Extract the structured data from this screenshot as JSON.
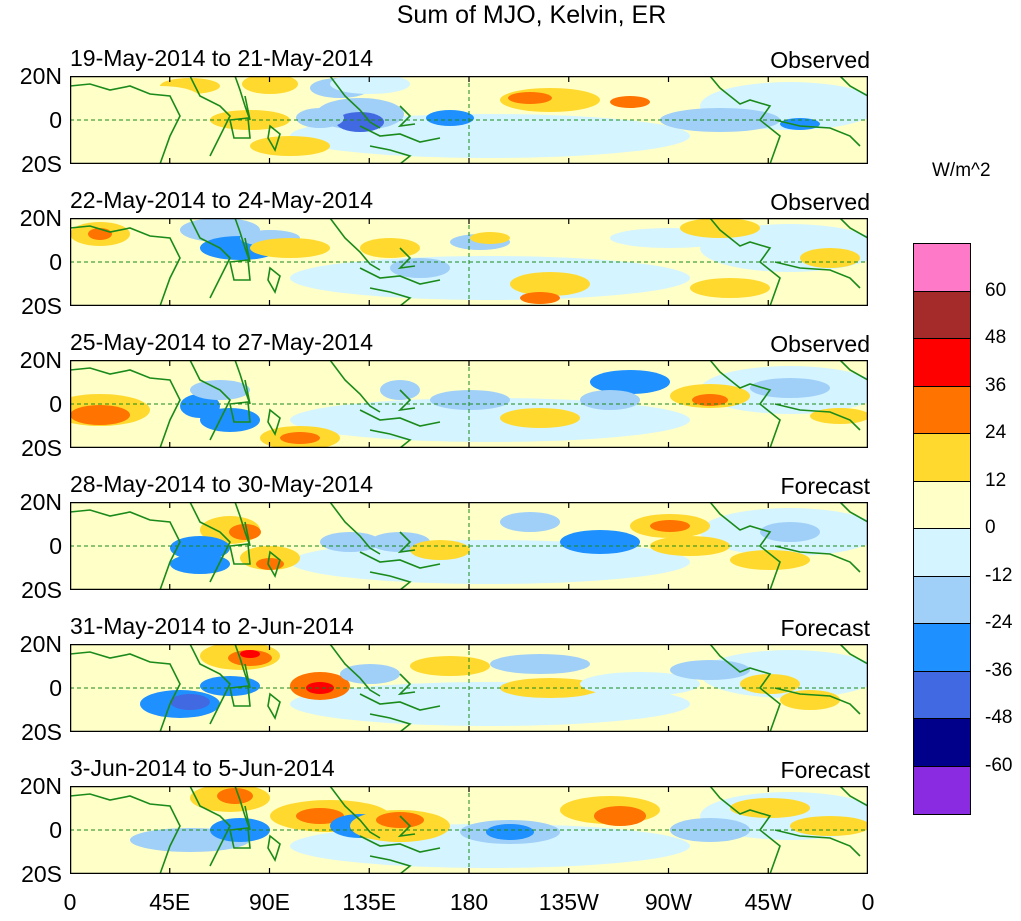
{
  "title": "Sum of MJO, Kelvin, ER",
  "unit": "W/m^2",
  "lat_labels": [
    "20N",
    "0",
    "20S"
  ],
  "x_tick_labels": [
    "0",
    "45E",
    "90E",
    "135E",
    "180",
    "135W",
    "90W",
    "45W",
    "0"
  ],
  "colorbar": {
    "labels": [
      "60",
      "48",
      "36",
      "24",
      "12",
      "0",
      "-12",
      "-24",
      "-36",
      "-48",
      "-60"
    ],
    "colors": [
      "#ff79c9",
      "#a52a2a",
      "#ff0000",
      "#ff7300",
      "#ffd92e",
      "#ffffc8",
      "#d4f4ff",
      "#a0cff8",
      "#1e90ff",
      "#4169e1",
      "#00008b",
      "#8a2be2"
    ]
  },
  "panels": [
    {
      "dates": "19-May-2014 to 21-May-2014",
      "status": "Observed"
    },
    {
      "dates": "22-May-2014 to 24-May-2014",
      "status": "Observed"
    },
    {
      "dates": "25-May-2014 to 27-May-2014",
      "status": "Observed"
    },
    {
      "dates": "28-May-2014 to 30-May-2014",
      "status": "Forecast"
    },
    {
      "dates": "31-May-2014 to 2-Jun-2014",
      "status": "Forecast"
    },
    {
      "dates": "3-Jun-2014 to 5-Jun-2014",
      "status": "Forecast"
    }
  ]
}
